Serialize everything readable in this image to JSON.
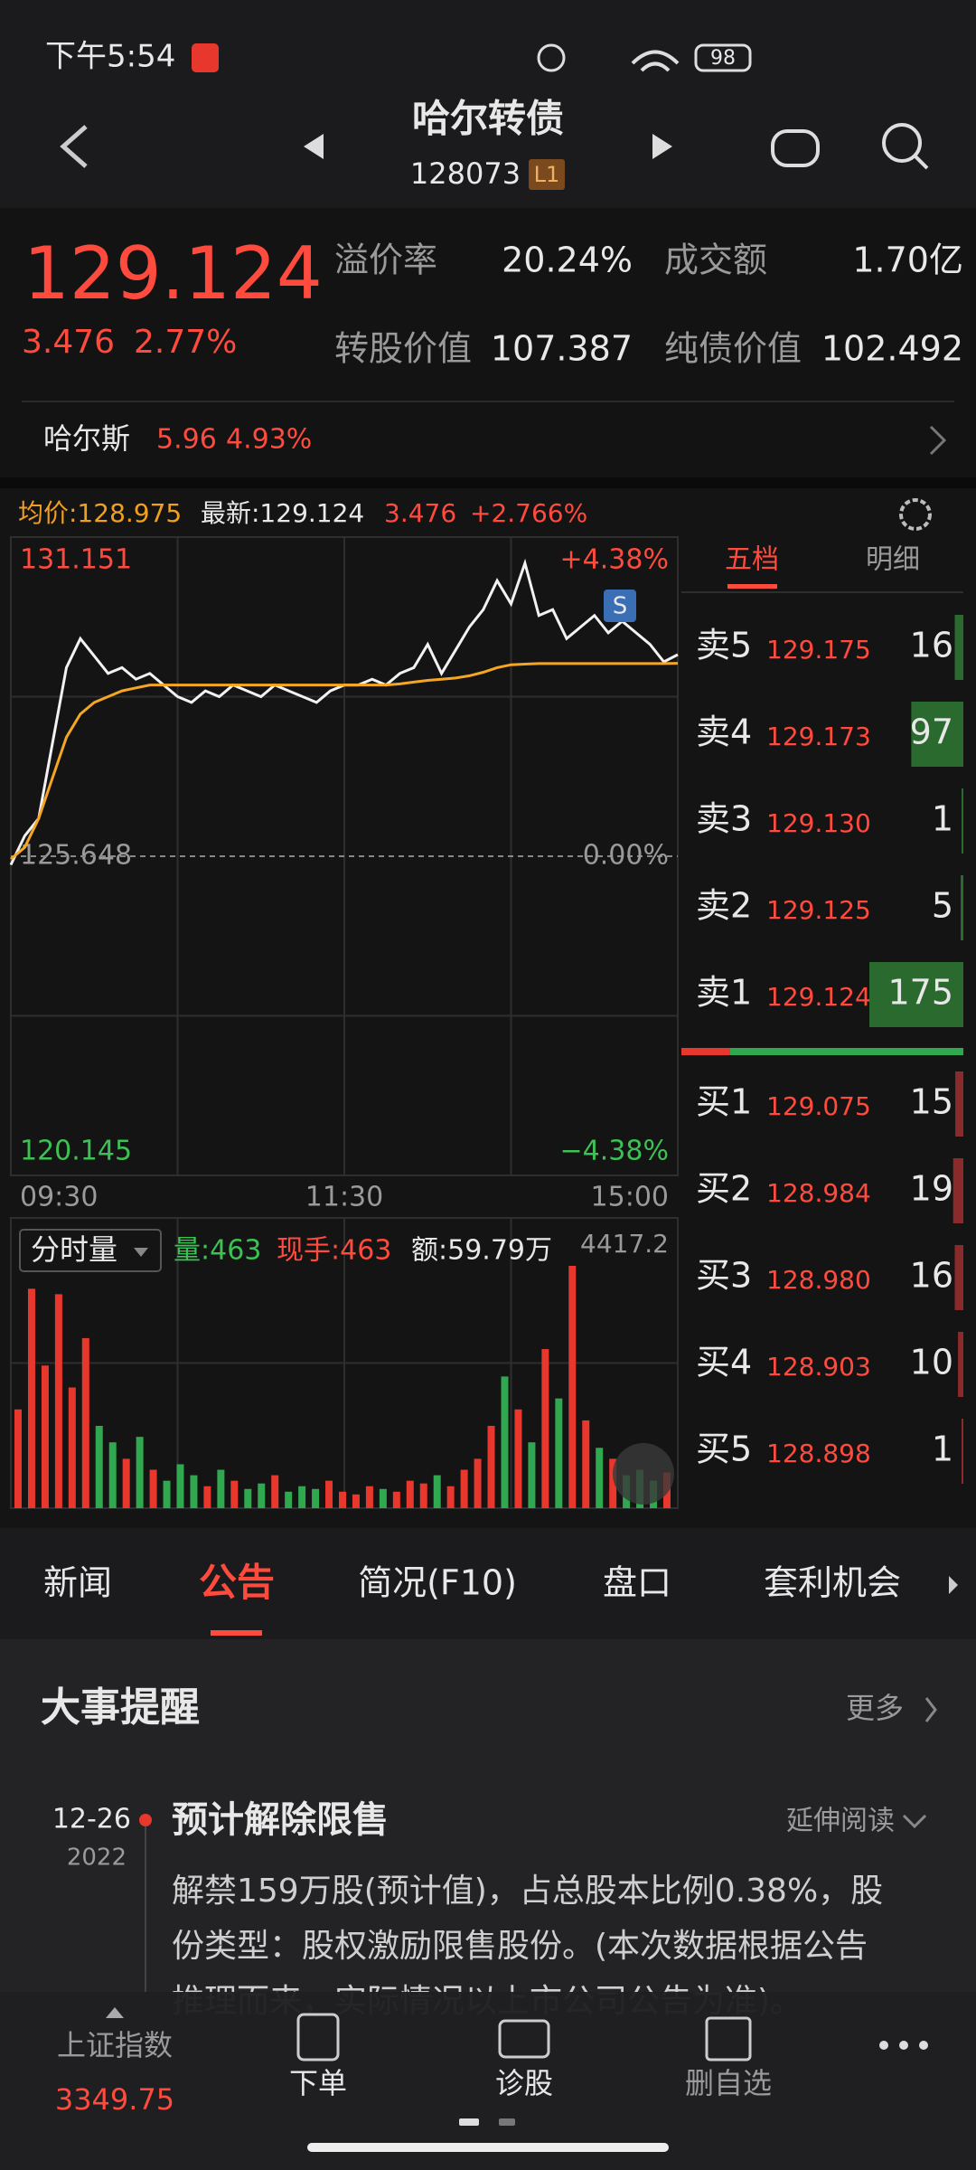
{
  "status": {
    "time": "下午5:54",
    "battery": "98"
  },
  "header": {
    "title": "哈尔转债",
    "code": "128073",
    "level": "L1"
  },
  "quote": {
    "price": "129.124",
    "change": "3.476",
    "pct": "2.77%",
    "fields": [
      {
        "label": "溢价率",
        "value": "20.24%"
      },
      {
        "label": "成交额",
        "value": "1.70亿"
      },
      {
        "label": "转股价值",
        "value": "107.387"
      },
      {
        "label": "纯债价值",
        "value": "102.492"
      }
    ]
  },
  "stock": {
    "name": "哈尔斯",
    "price": "5.96",
    "pct": "4.93%"
  },
  "chart_info": {
    "avg": "均价:128.975",
    "latest": "最新:129.124",
    "change": "3.476",
    "pct": "+2.766%"
  },
  "chart_data": [
    {
      "type": "line",
      "annotation": "S",
      "x": [
        0,
        5,
        10,
        15,
        20,
        25,
        30,
        35,
        40,
        45,
        50,
        55,
        60,
        65,
        70,
        75,
        80,
        85,
        90,
        95,
        100,
        105,
        110,
        115,
        120,
        125,
        130,
        135,
        140,
        145,
        150,
        155,
        160,
        165,
        170,
        175,
        180,
        185,
        190,
        195,
        200,
        205,
        210,
        215,
        220,
        225,
        230,
        235,
        240
      ],
      "xlim": [
        0,
        240
      ],
      "xticks": [
        {
          "value": 0,
          "label": "09:30"
        },
        {
          "value": 120,
          "label": "11:30"
        },
        {
          "value": 240,
          "label": "15:00"
        }
      ],
      "ylim": [
        120.145,
        131.151
      ],
      "yticks": [
        131.151,
        125.648,
        120.145
      ],
      "y2lim": [
        -4.38,
        4.38
      ],
      "y2ticks": [
        {
          "value": 4.38,
          "label": "+4.38%"
        },
        {
          "value": 0,
          "label": "0.00%"
        },
        {
          "value": -4.38,
          "label": "−4.38%"
        }
      ],
      "series": [
        {
          "color": "#f2f2f2",
          "values": [
            125.5,
            126.0,
            126.3,
            127.6,
            128.9,
            129.4,
            129.1,
            128.8,
            128.9,
            128.7,
            128.8,
            128.6,
            128.4,
            128.3,
            128.5,
            128.4,
            128.6,
            128.5,
            128.4,
            128.6,
            128.5,
            128.4,
            128.3,
            128.5,
            128.6,
            128.6,
            128.7,
            128.6,
            128.8,
            128.9,
            129.3,
            128.8,
            129.2,
            129.6,
            129.9,
            130.4,
            130.0,
            130.7,
            129.8,
            129.9,
            129.4,
            129.6,
            129.8,
            129.5,
            129.7,
            129.5,
            129.3,
            129.0,
            129.124
          ]
        },
        {
          "color": "#f5a623",
          "values": [
            125.6,
            125.8,
            126.3,
            127.0,
            127.7,
            128.1,
            128.3,
            128.4,
            128.5,
            128.55,
            128.6,
            128.6,
            128.6,
            128.6,
            128.6,
            128.6,
            128.6,
            128.6,
            128.6,
            128.6,
            128.6,
            128.6,
            128.6,
            128.6,
            128.6,
            128.6,
            128.6,
            128.6,
            128.62,
            128.65,
            128.68,
            128.7,
            128.72,
            128.76,
            128.82,
            128.9,
            128.95,
            128.96,
            128.97,
            128.97,
            128.97,
            128.97,
            128.97,
            128.97,
            128.97,
            128.97,
            128.97,
            128.97,
            128.975
          ]
        }
      ]
    },
    {
      "type": "bar",
      "title": "分时量",
      "volume": "量:463",
      "hand": "现手:463",
      "amount": "额:59.79万",
      "colors": [
        "#e8372c",
        "#2fa84f"
      ],
      "x": [
        0,
        5,
        10,
        15,
        20,
        25,
        30,
        35,
        40,
        45,
        50,
        55,
        60,
        65,
        70,
        75,
        80,
        85,
        90,
        95,
        100,
        105,
        110,
        115,
        120,
        125,
        130,
        135,
        140,
        145,
        150,
        155,
        160,
        165,
        170,
        175,
        180,
        185,
        190,
        195,
        200,
        205,
        210,
        215,
        220,
        225,
        230,
        235,
        240
      ],
      "xlim": [
        0,
        240
      ],
      "ylim": [
        0,
        4417.2
      ],
      "yticks": [
        4417.2
      ],
      "values": [
        1800,
        4000,
        2600,
        3900,
        2200,
        3100,
        1500,
        1200,
        900,
        1300,
        700,
        500,
        800,
        600,
        400,
        700,
        500,
        350,
        450,
        600,
        300,
        400,
        350,
        500,
        300,
        250,
        400,
        350,
        300,
        500,
        450,
        600,
        400,
        700,
        900,
        1500,
        2400,
        1800,
        1200,
        2900,
        2000,
        4417.2,
        1600,
        1100,
        900,
        600,
        700,
        500,
        650
      ]
    }
  ],
  "book": {
    "tabs": [
      "五档",
      "明细"
    ],
    "asks": [
      {
        "label": "卖5",
        "price": "129.175",
        "vol": 16
      },
      {
        "label": "卖4",
        "price": "129.173",
        "vol": 97
      },
      {
        "label": "卖3",
        "price": "129.130",
        "vol": 1
      },
      {
        "label": "卖2",
        "price": "129.125",
        "vol": 5
      },
      {
        "label": "卖1",
        "price": "129.124",
        "vol": 175
      }
    ],
    "bids": [
      {
        "label": "买1",
        "price": "129.075",
        "vol": 15
      },
      {
        "label": "买2",
        "price": "128.984",
        "vol": 19
      },
      {
        "label": "买3",
        "price": "128.980",
        "vol": 16
      },
      {
        "label": "买4",
        "price": "128.903",
        "vol": 10
      },
      {
        "label": "买5",
        "price": "128.898",
        "vol": 1
      }
    ]
  },
  "tabs": [
    "新闻",
    "公告",
    "简况(F10)",
    "盘口",
    "套利机会"
  ],
  "events": {
    "title": "大事提醒",
    "more": "更多",
    "date": "12-26",
    "year": "2022",
    "item": "预计解除限售",
    "expand": "延伸阅读",
    "body": [
      "解禁159万股(预计值)，占总股本比例0.38%，股",
      "份类型：股权激励限售股份。(本次数据根据公告",
      "推理而来，实际情况以上市公司公告为准)。"
    ]
  },
  "nav": {
    "index_name": "上证指数",
    "index_value": "3349.75",
    "items": [
      "下单",
      "诊股",
      "删自选"
    ]
  }
}
